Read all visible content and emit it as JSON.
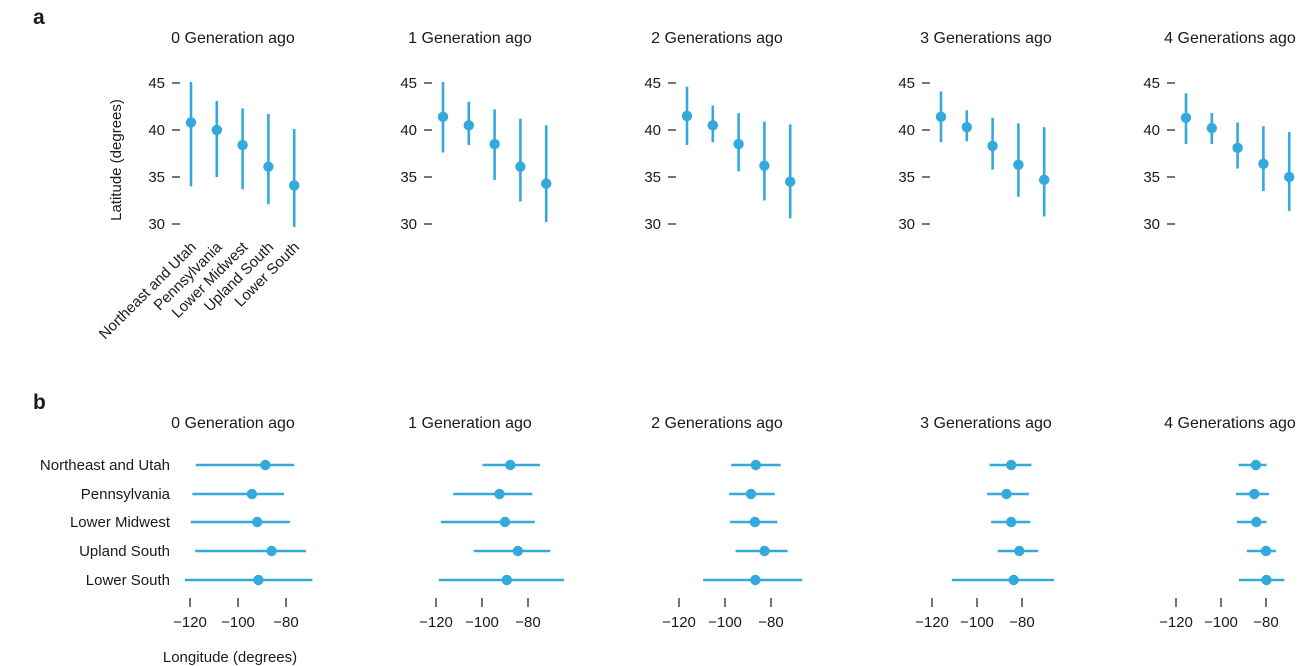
{
  "colors": {
    "series": "#33a9dc",
    "axis": "#1a1a1a"
  },
  "regions": [
    "Northeast and Utah",
    "Pennsylvania",
    "Lower Midwest",
    "Upland South",
    "Lower South"
  ],
  "panel_titles": [
    "0 Generation ago",
    "1 Generation ago",
    "2 Generations ago",
    "3 Generations ago",
    "4 Generations ago"
  ],
  "chart_data": [
    {
      "panel": "a",
      "type": "scatter",
      "description_type": "point-range",
      "ylabel": "Latitude (degrees)",
      "ylim": [
        30,
        45
      ],
      "yticks": [
        "45",
        "40",
        "35",
        "30"
      ],
      "subplots": [
        {
          "title": "0 Generation ago",
          "points": [
            {
              "category": "Northeast and Utah",
              "y": 40.8,
              "low": 34.0,
              "high": 45.1
            },
            {
              "category": "Pennsylvania",
              "y": 40.0,
              "low": 35.0,
              "high": 43.1
            },
            {
              "category": "Lower Midwest",
              "y": 38.4,
              "low": 33.7,
              "high": 42.3
            },
            {
              "category": "Upland South",
              "y": 36.1,
              "low": 32.1,
              "high": 41.7
            },
            {
              "category": "Lower South",
              "y": 34.1,
              "low": 29.7,
              "high": 40.1
            }
          ]
        },
        {
          "title": "1 Generation ago",
          "points": [
            {
              "category": "Northeast and Utah",
              "y": 41.4,
              "low": 37.6,
              "high": 45.1
            },
            {
              "category": "Pennsylvania",
              "y": 40.5,
              "low": 38.4,
              "high": 43.0
            },
            {
              "category": "Lower Midwest",
              "y": 38.5,
              "low": 34.7,
              "high": 42.2
            },
            {
              "category": "Upland South",
              "y": 36.1,
              "low": 32.4,
              "high": 41.2
            },
            {
              "category": "Lower South",
              "y": 34.3,
              "low": 30.2,
              "high": 40.5
            }
          ]
        },
        {
          "title": "2 Generations ago",
          "points": [
            {
              "category": "Northeast and Utah",
              "y": 41.5,
              "low": 38.4,
              "high": 44.6
            },
            {
              "category": "Pennsylvania",
              "y": 40.5,
              "low": 38.7,
              "high": 42.6
            },
            {
              "category": "Lower Midwest",
              "y": 38.5,
              "low": 35.6,
              "high": 41.8
            },
            {
              "category": "Upland South",
              "y": 36.2,
              "low": 32.5,
              "high": 40.9
            },
            {
              "category": "Lower South",
              "y": 34.5,
              "low": 30.6,
              "high": 40.6
            }
          ]
        },
        {
          "title": "3 Generations ago",
          "points": [
            {
              "category": "Northeast and Utah",
              "y": 41.4,
              "low": 38.7,
              "high": 44.1
            },
            {
              "category": "Pennsylvania",
              "y": 40.3,
              "low": 38.8,
              "high": 42.1
            },
            {
              "category": "Lower Midwest",
              "y": 38.3,
              "low": 35.8,
              "high": 41.3
            },
            {
              "category": "Upland South",
              "y": 36.3,
              "low": 32.9,
              "high": 40.7
            },
            {
              "category": "Lower South",
              "y": 34.7,
              "low": 30.8,
              "high": 40.3
            }
          ]
        },
        {
          "title": "4 Generations ago",
          "points": [
            {
              "category": "Northeast and Utah",
              "y": 41.3,
              "low": 38.5,
              "high": 43.9
            },
            {
              "category": "Pennsylvania",
              "y": 40.2,
              "low": 38.5,
              "high": 41.8
            },
            {
              "category": "Lower Midwest",
              "y": 38.1,
              "low": 35.9,
              "high": 40.8
            },
            {
              "category": "Upland South",
              "y": 36.4,
              "low": 33.5,
              "high": 40.4
            },
            {
              "category": "Lower South",
              "y": 35.0,
              "low": 31.4,
              "high": 39.8
            }
          ]
        }
      ]
    },
    {
      "panel": "b",
      "type": "scatter",
      "description_type": "point-range",
      "xlabel": "Longitude (degrees)",
      "xlim": [
        -120,
        -80
      ],
      "xticks": [
        "−120",
        "−100",
        "−80"
      ],
      "subplots": [
        {
          "title": "0 Generation ago",
          "points": [
            {
              "category": "Northeast and Utah",
              "x": -88.6,
              "low": -117.6,
              "high": -76.6
            },
            {
              "category": "Pennsylvania",
              "x": -94.2,
              "low": -119.0,
              "high": -80.8
            },
            {
              "category": "Lower Midwest",
              "x": -92.0,
              "low": -119.7,
              "high": -78.4
            },
            {
              "category": "Upland South",
              "x": -86.0,
              "low": -117.9,
              "high": -71.7
            },
            {
              "category": "Lower South",
              "x": -91.5,
              "low": -122.1,
              "high": -69.0
            }
          ]
        },
        {
          "title": "1 Generation ago",
          "points": [
            {
              "category": "Northeast and Utah",
              "x": -87.7,
              "low": -99.8,
              "high": -74.8
            },
            {
              "category": "Pennsylvania",
              "x": -92.4,
              "low": -112.5,
              "high": -78.1
            },
            {
              "category": "Lower Midwest",
              "x": -90.0,
              "low": -117.9,
              "high": -77.1
            },
            {
              "category": "Upland South",
              "x": -84.4,
              "low": -103.6,
              "high": -70.4
            },
            {
              "category": "Lower South",
              "x": -89.2,
              "low": -118.8,
              "high": -64.3
            }
          ]
        },
        {
          "title": "2 Generations ago",
          "points": [
            {
              "category": "Northeast and Utah",
              "x": -86.6,
              "low": -97.3,
              "high": -75.8
            },
            {
              "category": "Pennsylvania",
              "x": -88.7,
              "low": -98.2,
              "high": -78.4
            },
            {
              "category": "Lower Midwest",
              "x": -87.0,
              "low": -97.8,
              "high": -77.3
            },
            {
              "category": "Upland South",
              "x": -82.8,
              "low": -95.4,
              "high": -72.8
            },
            {
              "category": "Lower South",
              "x": -86.8,
              "low": -109.5,
              "high": -66.4
            }
          ]
        },
        {
          "title": "3 Generations ago",
          "points": [
            {
              "category": "Northeast and Utah",
              "x": -84.8,
              "low": -94.4,
              "high": -75.8
            },
            {
              "category": "Pennsylvania",
              "x": -86.9,
              "low": -95.5,
              "high": -77.0
            },
            {
              "category": "Lower Midwest",
              "x": -84.8,
              "low": -93.7,
              "high": -76.3
            },
            {
              "category": "Upland South",
              "x": -81.2,
              "low": -90.8,
              "high": -72.8
            },
            {
              "category": "Lower South",
              "x": -83.7,
              "low": -111.2,
              "high": -65.8
            }
          ]
        },
        {
          "title": "4 Generations ago",
          "points": [
            {
              "category": "Northeast and Utah",
              "x": -84.5,
              "low": -92.2,
              "high": -79.8
            },
            {
              "category": "Pennsylvania",
              "x": -85.2,
              "low": -93.4,
              "high": -78.7
            },
            {
              "category": "Lower Midwest",
              "x": -84.3,
              "low": -92.9,
              "high": -79.8
            },
            {
              "category": "Upland South",
              "x": -80.0,
              "low": -88.5,
              "high": -75.6
            },
            {
              "category": "Lower South",
              "x": -79.8,
              "low": -92.0,
              "high": -71.9
            }
          ]
        }
      ]
    }
  ]
}
